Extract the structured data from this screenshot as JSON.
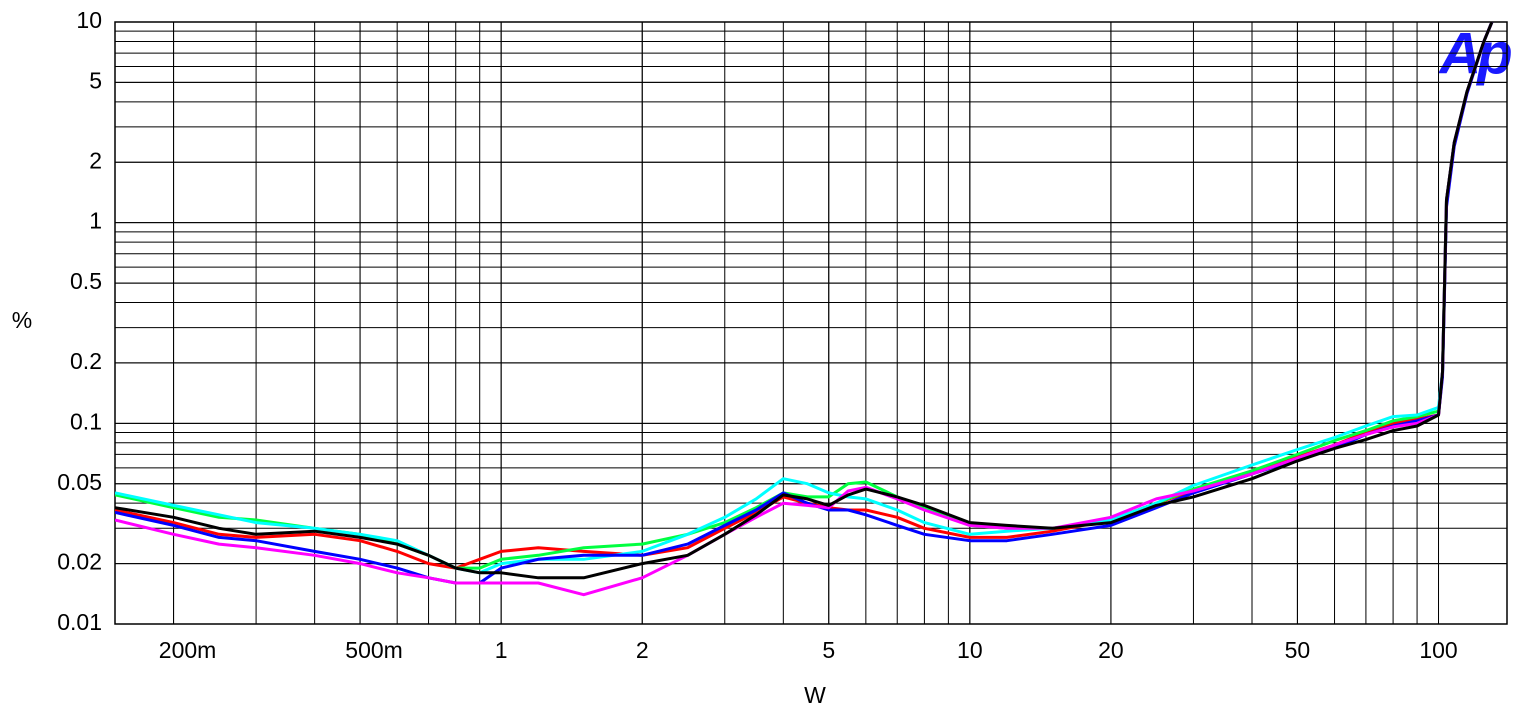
{
  "chart_data": {
    "type": "line",
    "x_label": "W",
    "y_label": "%",
    "logo": "Ap",
    "xlog": true,
    "ylog": true,
    "grid": true,
    "minor_grid": true,
    "xlim": [
      0.15,
      140
    ],
    "ylim": [
      0.01,
      10
    ],
    "xticks": [
      {
        "value": 0.2,
        "label": "200m"
      },
      {
        "value": 0.5,
        "label": "500m"
      },
      1,
      2,
      5,
      10,
      20,
      50,
      100
    ],
    "yticks": [
      0.01,
      0.02,
      0.05,
      0.1,
      0.2,
      0.5,
      1,
      2,
      5,
      10
    ],
    "x": [
      0.15,
      0.2,
      0.25,
      0.3,
      0.4,
      0.5,
      0.6,
      0.7,
      0.8,
      0.9,
      1,
      1.2,
      1.5,
      2,
      2.5,
      3,
      3.5,
      4,
      4.5,
      5,
      5.5,
      6,
      7,
      8,
      10,
      12,
      15,
      20,
      25,
      30,
      40,
      50,
      60,
      70,
      80,
      90,
      100,
      102,
      104,
      108,
      115,
      125,
      130
    ],
    "series": [
      {
        "color": "#ff0000",
        "values": [
          0.037,
          0.032,
          0.028,
          0.027,
          0.028,
          0.026,
          0.023,
          0.02,
          0.019,
          0.021,
          0.023,
          0.024,
          0.023,
          0.022,
          0.024,
          0.03,
          0.036,
          0.043,
          0.04,
          0.038,
          0.037,
          0.037,
          0.034,
          0.03,
          0.027,
          0.027,
          0.029,
          0.033,
          0.04,
          0.046,
          0.057,
          0.068,
          0.078,
          0.09,
          0.1,
          0.105,
          0.11,
          0.18,
          1.3,
          2.5,
          4.5,
          8,
          10
        ]
      },
      {
        "color": "#00ff40",
        "values": [
          0.044,
          0.038,
          0.034,
          0.033,
          0.03,
          0.028,
          0.025,
          0.022,
          0.019,
          0.019,
          0.021,
          0.022,
          0.024,
          0.025,
          0.028,
          0.032,
          0.038,
          0.045,
          0.043,
          0.043,
          0.05,
          0.051,
          0.043,
          0.038,
          0.031,
          0.03,
          0.03,
          0.033,
          0.04,
          0.047,
          0.058,
          0.07,
          0.082,
          0.092,
          0.103,
          0.108,
          0.115,
          0.18,
          1.3,
          2.5,
          4.5,
          8,
          10
        ]
      },
      {
        "color": "#00ffff",
        "values": [
          0.045,
          0.039,
          0.035,
          0.032,
          0.03,
          0.028,
          0.026,
          0.022,
          0.019,
          0.018,
          0.02,
          0.021,
          0.021,
          0.023,
          0.028,
          0.034,
          0.042,
          0.053,
          0.05,
          0.045,
          0.043,
          0.042,
          0.037,
          0.032,
          0.028,
          0.029,
          0.03,
          0.033,
          0.04,
          0.049,
          0.062,
          0.074,
          0.085,
          0.097,
          0.108,
          0.11,
          0.12,
          0.18,
          1.3,
          2.5,
          4.5,
          8,
          10
        ]
      },
      {
        "color": "#0000ff",
        "values": [
          0.036,
          0.031,
          0.027,
          0.026,
          0.023,
          0.021,
          0.019,
          0.017,
          0.016,
          0.016,
          0.019,
          0.021,
          0.022,
          0.022,
          0.025,
          0.031,
          0.037,
          0.045,
          0.04,
          0.037,
          0.037,
          0.035,
          0.031,
          0.028,
          0.026,
          0.026,
          0.028,
          0.031,
          0.038,
          0.045,
          0.056,
          0.066,
          0.075,
          0.088,
          0.097,
          0.103,
          0.11,
          0.17,
          1.2,
          2.4,
          4.4,
          8,
          10
        ]
      },
      {
        "color": "#ff00ff",
        "values": [
          0.033,
          0.028,
          0.025,
          0.024,
          0.022,
          0.02,
          0.018,
          0.017,
          0.016,
          0.016,
          0.016,
          0.016,
          0.014,
          0.017,
          0.022,
          0.028,
          0.034,
          0.04,
          0.039,
          0.038,
          0.046,
          0.048,
          0.042,
          0.037,
          0.031,
          0.03,
          0.03,
          0.034,
          0.042,
          0.046,
          0.056,
          0.067,
          0.078,
          0.088,
          0.096,
          0.1,
          0.11,
          0.18,
          1.3,
          2.5,
          4.5,
          8,
          10
        ]
      },
      {
        "color": "#000000",
        "values": [
          0.038,
          0.034,
          0.03,
          0.028,
          0.029,
          0.027,
          0.025,
          0.022,
          0.019,
          0.018,
          0.018,
          0.017,
          0.017,
          0.02,
          0.022,
          0.028,
          0.035,
          0.044,
          0.042,
          0.039,
          0.044,
          0.047,
          0.043,
          0.039,
          0.032,
          0.031,
          0.03,
          0.032,
          0.039,
          0.043,
          0.053,
          0.065,
          0.075,
          0.083,
          0.092,
          0.097,
          0.11,
          0.18,
          1.3,
          2.5,
          4.5,
          8,
          10
        ]
      }
    ]
  }
}
